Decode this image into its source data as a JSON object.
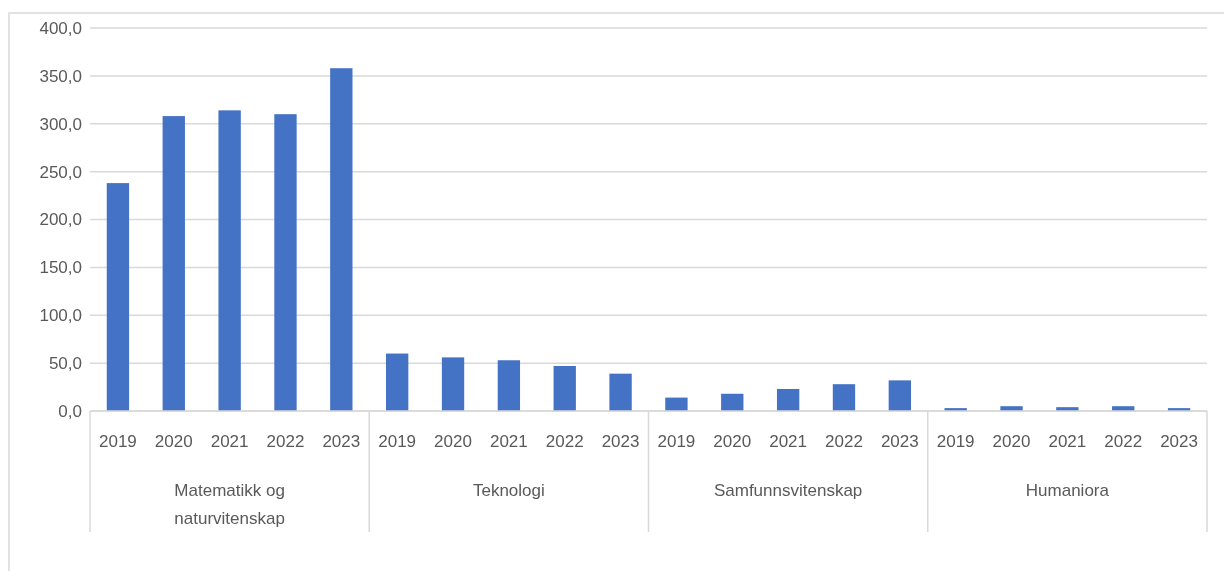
{
  "chart_data": {
    "type": "bar",
    "categories": [
      "2019",
      "2020",
      "2021",
      "2022",
      "2023",
      "2019",
      "2020",
      "2021",
      "2022",
      "2023",
      "2019",
      "2020",
      "2021",
      "2022",
      "2023",
      "2019",
      "2020",
      "2021",
      "2022",
      "2023"
    ],
    "values": [
      238,
      308,
      314,
      310,
      358,
      60,
      56,
      53,
      47,
      39,
      14,
      18,
      23,
      28,
      32,
      3,
      5,
      4,
      5,
      3
    ],
    "color": "#4472c4",
    "ylim": [
      0,
      400
    ],
    "yticks": [
      {
        "value": 0,
        "label": "0,0"
      },
      {
        "value": 50,
        "label": "50,0"
      },
      {
        "value": 100,
        "label": "100,0"
      },
      {
        "value": 150,
        "label": "150,0"
      },
      {
        "value": 200,
        "label": "200,0"
      },
      {
        "value": 250,
        "label": "250,0"
      },
      {
        "value": 300,
        "label": "300,0"
      },
      {
        "value": 350,
        "label": "350,0"
      },
      {
        "value": 400,
        "label": "400,0"
      }
    ],
    "grid": "y",
    "annotations": [
      "Matematikk og naturvitenskap",
      "Teknologi",
      "Samfunnsvitenskap",
      "Humaniora"
    ]
  }
}
